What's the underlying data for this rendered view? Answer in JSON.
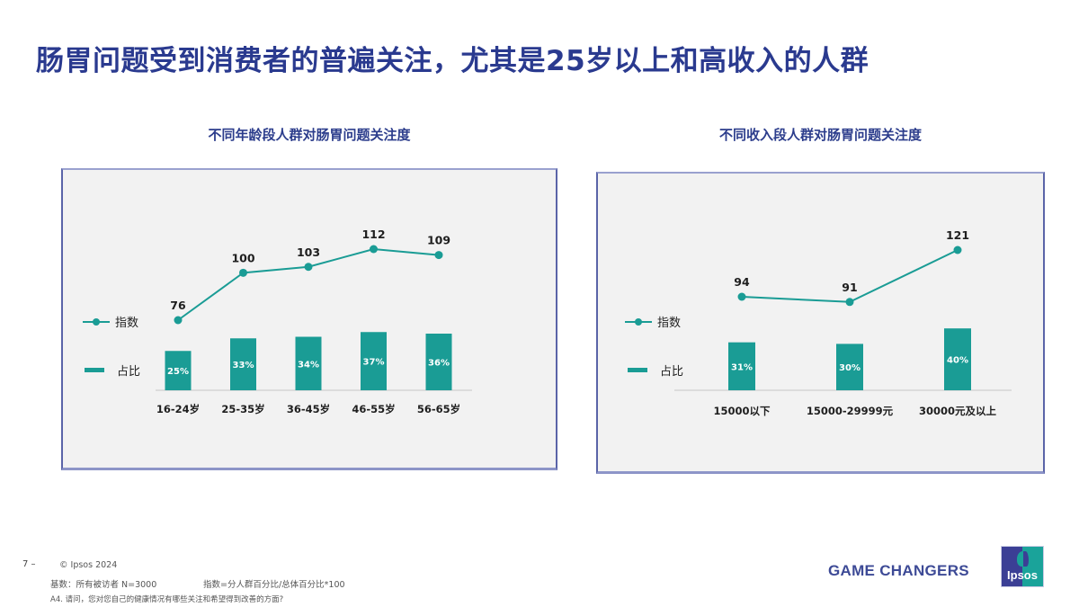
{
  "slide": {
    "title": "肠胃问题受到消费者的普遍关注，尤其是25岁以上和高收入的人群"
  },
  "colors": {
    "title": "#2a3a8f",
    "teal": "#1a9c95",
    "panel_bg": "#f2f2f2",
    "panel_border": "#5a64a8"
  },
  "legend": {
    "line_label": "指数",
    "bar_label": "占比"
  },
  "chart_data": [
    {
      "type": "bar+line",
      "title": "不同年龄段人群对肠胃问题关注度",
      "categories": [
        "16-24岁",
        "25-35岁",
        "36-45岁",
        "46-55岁",
        "56-65岁"
      ],
      "series": [
        {
          "name": "指数",
          "type": "line",
          "values": [
            76,
            100,
            103,
            112,
            109
          ],
          "labels": [
            "76",
            "100",
            "103",
            "112",
            "109"
          ]
        },
        {
          "name": "占比",
          "type": "bar",
          "values": [
            25,
            33,
            34,
            37,
            36
          ],
          "labels": [
            "25%",
            "33%",
            "34%",
            "37%",
            "36%"
          ]
        }
      ],
      "xlabel": "",
      "ylabel": "",
      "grid": false,
      "legend_position": "left"
    },
    {
      "type": "bar+line",
      "title": "不同收入段人群对肠胃问题关注度",
      "categories": [
        "15000以下",
        "15000-29999元",
        "30000元及以上"
      ],
      "series": [
        {
          "name": "指数",
          "type": "line",
          "values": [
            94,
            91,
            121
          ],
          "labels": [
            "94",
            "91",
            "121"
          ]
        },
        {
          "name": "占比",
          "type": "bar",
          "values": [
            31,
            30,
            40
          ],
          "labels": [
            "31%",
            "30%",
            "40%"
          ]
        }
      ],
      "xlabel": "",
      "ylabel": "",
      "grid": false,
      "legend_position": "left"
    }
  ],
  "footer": {
    "page_number": "7 –",
    "copyright": "© Ipsos 2024",
    "base": "基数：所有被访者 N=3000",
    "index_note": "指数=分人群百分比/总体百分比*100",
    "question": "A4. 请问，您对您自己的健康情况有哪些关注和希望得到改善的方面?",
    "brand_tag": "GAME CHANGERS",
    "logo_text": "Ipsos"
  }
}
